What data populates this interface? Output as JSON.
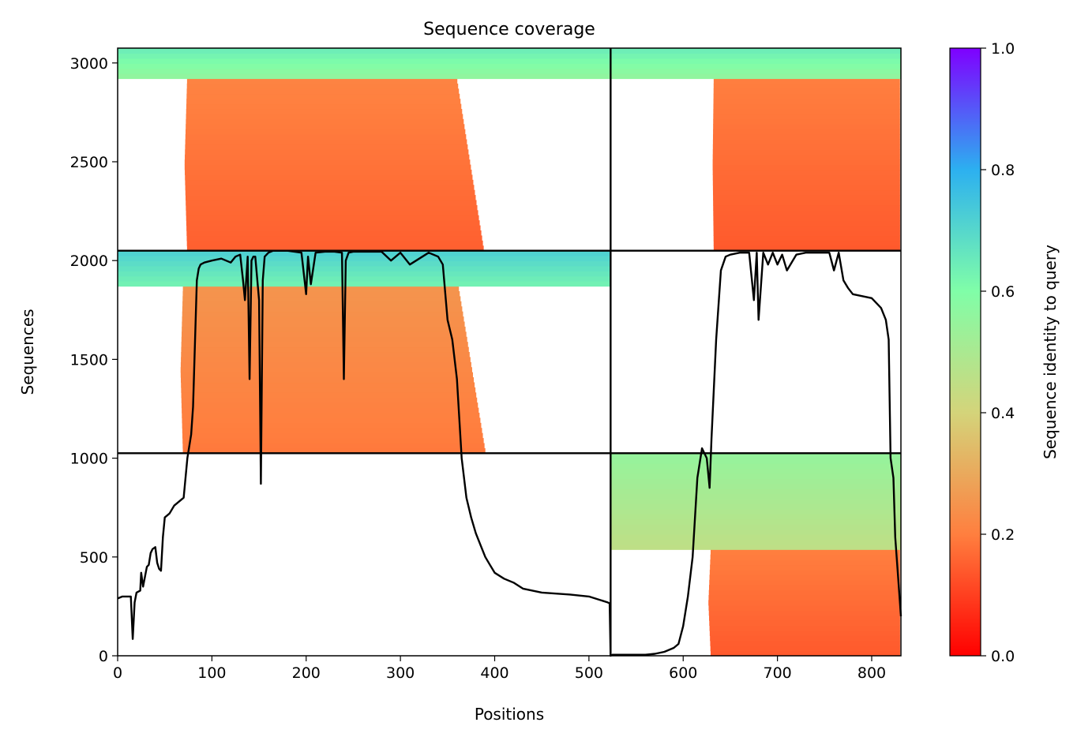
{
  "chart_data": {
    "type": "heatmap",
    "title": "Sequence coverage",
    "xlabel": "Positions",
    "ylabel": "Sequences",
    "xlim": [
      0,
      831
    ],
    "ylim": [
      0,
      3075
    ],
    "xticks": [
      0,
      100,
      200,
      300,
      400,
      500,
      600,
      700,
      800
    ],
    "yticks": [
      0,
      500,
      1000,
      1500,
      2000,
      2500,
      3000
    ],
    "colorbar": {
      "label": "Sequence identity to query",
      "ticks": [
        0.0,
        0.2,
        0.4,
        0.6,
        0.8,
        1.0
      ],
      "tick_labels": [
        "0.0",
        "0.2",
        "0.4",
        "0.6",
        "0.8",
        "1.0"
      ],
      "range": [
        0.0,
        1.0
      ],
      "colormap": "rainbow_r",
      "stops": [
        "#ff0000",
        "#ff7f3f",
        "#d4d47a",
        "#80fea8",
        "#2cb0f0",
        "#7f00ff"
      ]
    },
    "block_boundaries": {
      "x": [
        523
      ],
      "y": [
        1025,
        2050
      ]
    },
    "blocks": [
      {
        "x": [
          0,
          523
        ],
        "y": [
          2050,
          3075
        ],
        "top_identity": 0.55,
        "top_rows": [
          2920,
          3075
        ],
        "body_identity": 0.21,
        "body_x": [
          80,
          360
        ],
        "fringe_x": [
          20,
          600
        ]
      },
      {
        "x": [
          523,
          831
        ],
        "y": [
          2050,
          3075
        ],
        "top_identity": 0.55,
        "top_rows": [
          2920,
          3075
        ],
        "body_identity": 0.2,
        "body_x": [
          635,
          830
        ],
        "fringe_x": [
          610,
          831
        ]
      },
      {
        "x": [
          0,
          523
        ],
        "y": [
          1025,
          2050
        ],
        "top_identity": 0.62,
        "top_rows": [
          1860,
          2050
        ],
        "body_identity": 0.25,
        "body_x": [
          75,
          362
        ],
        "fringe_x": [
          20,
          600
        ]
      },
      {
        "x": [
          523,
          831
        ],
        "y": [
          0,
          1025
        ],
        "top_identity": 0.45,
        "top_rows": [
          540,
          1025
        ],
        "body_identity": 0.2,
        "body_x": [
          635,
          830
        ],
        "fringe_x": [
          580,
          831
        ]
      }
    ],
    "coverage_line": {
      "color": "#000000",
      "x": [
        0,
        5,
        10,
        14,
        16,
        18,
        20,
        24,
        25,
        27,
        29,
        31,
        33,
        35,
        37,
        40,
        42,
        44,
        46,
        48,
        50,
        55,
        60,
        65,
        70,
        74,
        76,
        78,
        80,
        84,
        86,
        88,
        92,
        100,
        110,
        120,
        125,
        130,
        133,
        135,
        138,
        140,
        142,
        144,
        146,
        150,
        152,
        154,
        156,
        158,
        160,
        165,
        170,
        180,
        195,
        200,
        202,
        205,
        210,
        220,
        230,
        238,
        240,
        242,
        245,
        250,
        280,
        290,
        300,
        310,
        330,
        340,
        345,
        350,
        355,
        360,
        365,
        370,
        375,
        380,
        385,
        390,
        395,
        400,
        410,
        420,
        430,
        450,
        480,
        500,
        510,
        520,
        522,
        523,
        525,
        530,
        540,
        550,
        560,
        570,
        580,
        590,
        595,
        600,
        605,
        610,
        615,
        620,
        625,
        628,
        630,
        635,
        640,
        645,
        650,
        660,
        670,
        675,
        678,
        680,
        685,
        690,
        695,
        700,
        705,
        710,
        720,
        730,
        740,
        750,
        755,
        760,
        765,
        770,
        775,
        780,
        790,
        800,
        810,
        815,
        818,
        820,
        823,
        825,
        828,
        831
      ],
      "y": [
        290,
        300,
        300,
        300,
        85,
        270,
        320,
        330,
        420,
        350,
        400,
        450,
        460,
        520,
        540,
        550,
        470,
        440,
        430,
        600,
        700,
        720,
        760,
        780,
        800,
        1000,
        1060,
        1120,
        1260,
        1900,
        1960,
        1980,
        1990,
        2000,
        2010,
        1990,
        2020,
        2030,
        1900,
        1800,
        2020,
        1400,
        2000,
        2020,
        2020,
        1800,
        870,
        1900,
        2020,
        2030,
        2040,
        2050,
        2050,
        2050,
        2040,
        1830,
        2020,
        1880,
        2040,
        2045,
        2045,
        2040,
        1400,
        2000,
        2040,
        2045,
        2045,
        2000,
        2040,
        1980,
        2040,
        2020,
        1980,
        1700,
        1600,
        1400,
        1000,
        800,
        700,
        620,
        560,
        500,
        460,
        420,
        390,
        370,
        340,
        320,
        310,
        300,
        285,
        270,
        265,
        0,
        5,
        5,
        5,
        5,
        5,
        10,
        20,
        40,
        60,
        150,
        300,
        500,
        900,
        1050,
        1000,
        850,
        1100,
        1600,
        1950,
        2020,
        2030,
        2040,
        2040,
        1800,
        2040,
        1700,
        2040,
        1980,
        2040,
        1980,
        2030,
        1950,
        2030,
        2040,
        2040,
        2040,
        2040,
        1950,
        2040,
        1900,
        1860,
        1830,
        1820,
        1810,
        1760,
        1700,
        1600,
        1000,
        900,
        600,
        400,
        200,
        100
      ]
    }
  }
}
